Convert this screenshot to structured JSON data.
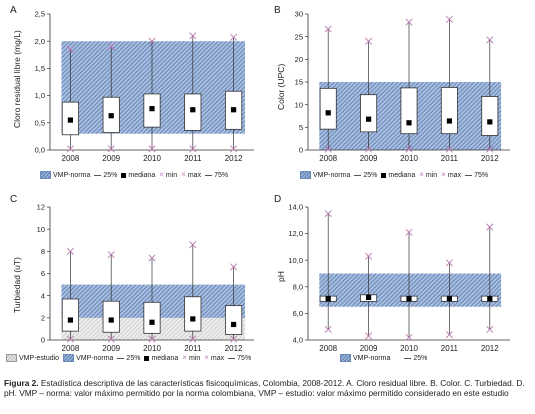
{
  "caption": {
    "label": "Figura 2.",
    "text": "Estadística descriptiva de las características fisicoquímicas, Colombia, 2008-2012. A. Cloro residual libre. B. Color. C. Turbiedad. D. pH. VMP – norma: valor máximo permitido por la norma colombiana, VMP – estudio: valor máximo permitido considerado en este estudio"
  },
  "colors": {
    "vmp_norma": "#6f8fc0",
    "vmp_estudio": "#cfcfcf",
    "whisker_x": "#b878b0",
    "median": "#000000"
  },
  "chart_data": [
    {
      "type": "box",
      "panel": "A",
      "ylabel": "Cloro residual libre (mg/L)",
      "categories": [
        "2008",
        "2009",
        "2010",
        "2011",
        "2012"
      ],
      "ylim": [
        0,
        2.5
      ],
      "yticks": [
        "0,0",
        "0,5",
        "1,0",
        "1,5",
        "2,0",
        "2,5"
      ],
      "ytick_values": [
        0,
        0.5,
        1,
        1.5,
        2,
        2.5
      ],
      "bands": [
        {
          "series": "VMP-norma",
          "from": 0.3,
          "to": 2.0,
          "color": "#6f8fc0"
        }
      ],
      "boxes": [
        {
          "min": 0.02,
          "q1": 0.28,
          "median": 0.55,
          "q3": 0.88,
          "max": 1.85
        },
        {
          "min": 0.02,
          "q1": 0.32,
          "median": 0.63,
          "q3": 0.97,
          "max": 1.9
        },
        {
          "min": 0.02,
          "q1": 0.42,
          "median": 0.76,
          "q3": 1.03,
          "max": 2.0
        },
        {
          "min": 0.02,
          "q1": 0.36,
          "median": 0.74,
          "q3": 1.03,
          "max": 2.1
        },
        {
          "min": 0.02,
          "q1": 0.38,
          "median": 0.74,
          "q3": 1.08,
          "max": 2.07
        }
      ],
      "legend": [
        "VMP-norma",
        "25%",
        "mediana",
        "min",
        "max",
        "75%"
      ]
    },
    {
      "type": "box",
      "panel": "B",
      "ylabel": "Color (UPC)",
      "categories": [
        "2008",
        "2009",
        "2010",
        "2011",
        "2012"
      ],
      "ylim": [
        0,
        30
      ],
      "yticks": [
        "0",
        "5",
        "10",
        "15",
        "20",
        "25",
        "30"
      ],
      "ytick_values": [
        0,
        5,
        10,
        15,
        20,
        25,
        30
      ],
      "bands": [
        {
          "series": "VMP-norma",
          "from": 0,
          "to": 15,
          "color": "#6f8fc0"
        }
      ],
      "boxes": [
        {
          "min": 0.2,
          "q1": 4.6,
          "median": 8.2,
          "q3": 13.6,
          "max": 26.7
        },
        {
          "min": 0.2,
          "q1": 4.0,
          "median": 6.8,
          "q3": 12.2,
          "max": 24.0
        },
        {
          "min": 0.2,
          "q1": 3.6,
          "median": 6.0,
          "q3": 13.7,
          "max": 28.2
        },
        {
          "min": 0.2,
          "q1": 3.6,
          "median": 6.4,
          "q3": 13.8,
          "max": 28.8
        },
        {
          "min": 0.2,
          "q1": 3.2,
          "median": 6.2,
          "q3": 11.8,
          "max": 24.3
        }
      ],
      "legend": [
        "VMP-norma",
        "25%",
        "mediana",
        "min",
        "max",
        "75%"
      ]
    },
    {
      "type": "box",
      "panel": "C",
      "ylabel": "Turbiedad (uT)",
      "categories": [
        "2008",
        "2009",
        "2010",
        "2011",
        "2012"
      ],
      "ylim": [
        0,
        12
      ],
      "yticks": [
        "0",
        "2",
        "4",
        "6",
        "8",
        "10",
        "12"
      ],
      "ytick_values": [
        0,
        2,
        4,
        6,
        8,
        10,
        12
      ],
      "bands": [
        {
          "series": "VMP-norma",
          "from": 0,
          "to": 5,
          "color": "#6f8fc0"
        },
        {
          "series": "VMP-estudio",
          "from": 0,
          "to": 2,
          "color": "#cfcfcf"
        }
      ],
      "boxes": [
        {
          "min": 0.08,
          "q1": 0.8,
          "median": 1.8,
          "q3": 3.7,
          "max": 8.0
        },
        {
          "min": 0.08,
          "q1": 0.7,
          "median": 1.8,
          "q3": 3.5,
          "max": 7.7
        },
        {
          "min": 0.08,
          "q1": 0.6,
          "median": 1.6,
          "q3": 3.4,
          "max": 7.4
        },
        {
          "min": 0.08,
          "q1": 0.8,
          "median": 1.9,
          "q3": 3.9,
          "max": 8.6
        },
        {
          "min": 0.08,
          "q1": 0.5,
          "median": 1.4,
          "q3": 3.1,
          "max": 6.6
        }
      ],
      "legend": [
        "VMP-estudio",
        "VMP-norma",
        "25%",
        "mediana",
        "min",
        "max",
        "75%"
      ]
    },
    {
      "type": "box",
      "panel": "D",
      "ylabel": "pH",
      "categories": [
        "2008",
        "2009",
        "2010",
        "2011",
        "2012"
      ],
      "ylim": [
        4,
        14
      ],
      "yticks": [
        "4,0",
        "6,0",
        "8,0",
        "10,0",
        "12,0",
        "14,0"
      ],
      "ytick_values": [
        4,
        6,
        8,
        10,
        12,
        14
      ],
      "bands": [
        {
          "series": "VMP-norma",
          "from": 6.5,
          "to": 9.0,
          "color": "#6f8fc0"
        }
      ],
      "boxes": [
        {
          "min": 4.8,
          "q1": 6.9,
          "median": 7.1,
          "q3": 7.3,
          "max": 13.5
        },
        {
          "min": 4.3,
          "q1": 6.9,
          "median": 7.2,
          "q3": 7.4,
          "max": 10.3
        },
        {
          "min": 4.2,
          "q1": 6.9,
          "median": 7.1,
          "q3": 7.3,
          "max": 12.1
        },
        {
          "min": 4.4,
          "q1": 6.9,
          "median": 7.1,
          "q3": 7.3,
          "max": 9.8
        },
        {
          "min": 4.8,
          "q1": 6.9,
          "median": 7.1,
          "q3": 7.3,
          "max": 12.5
        }
      ],
      "legend": [
        "VMP-norma",
        "25%"
      ]
    }
  ]
}
